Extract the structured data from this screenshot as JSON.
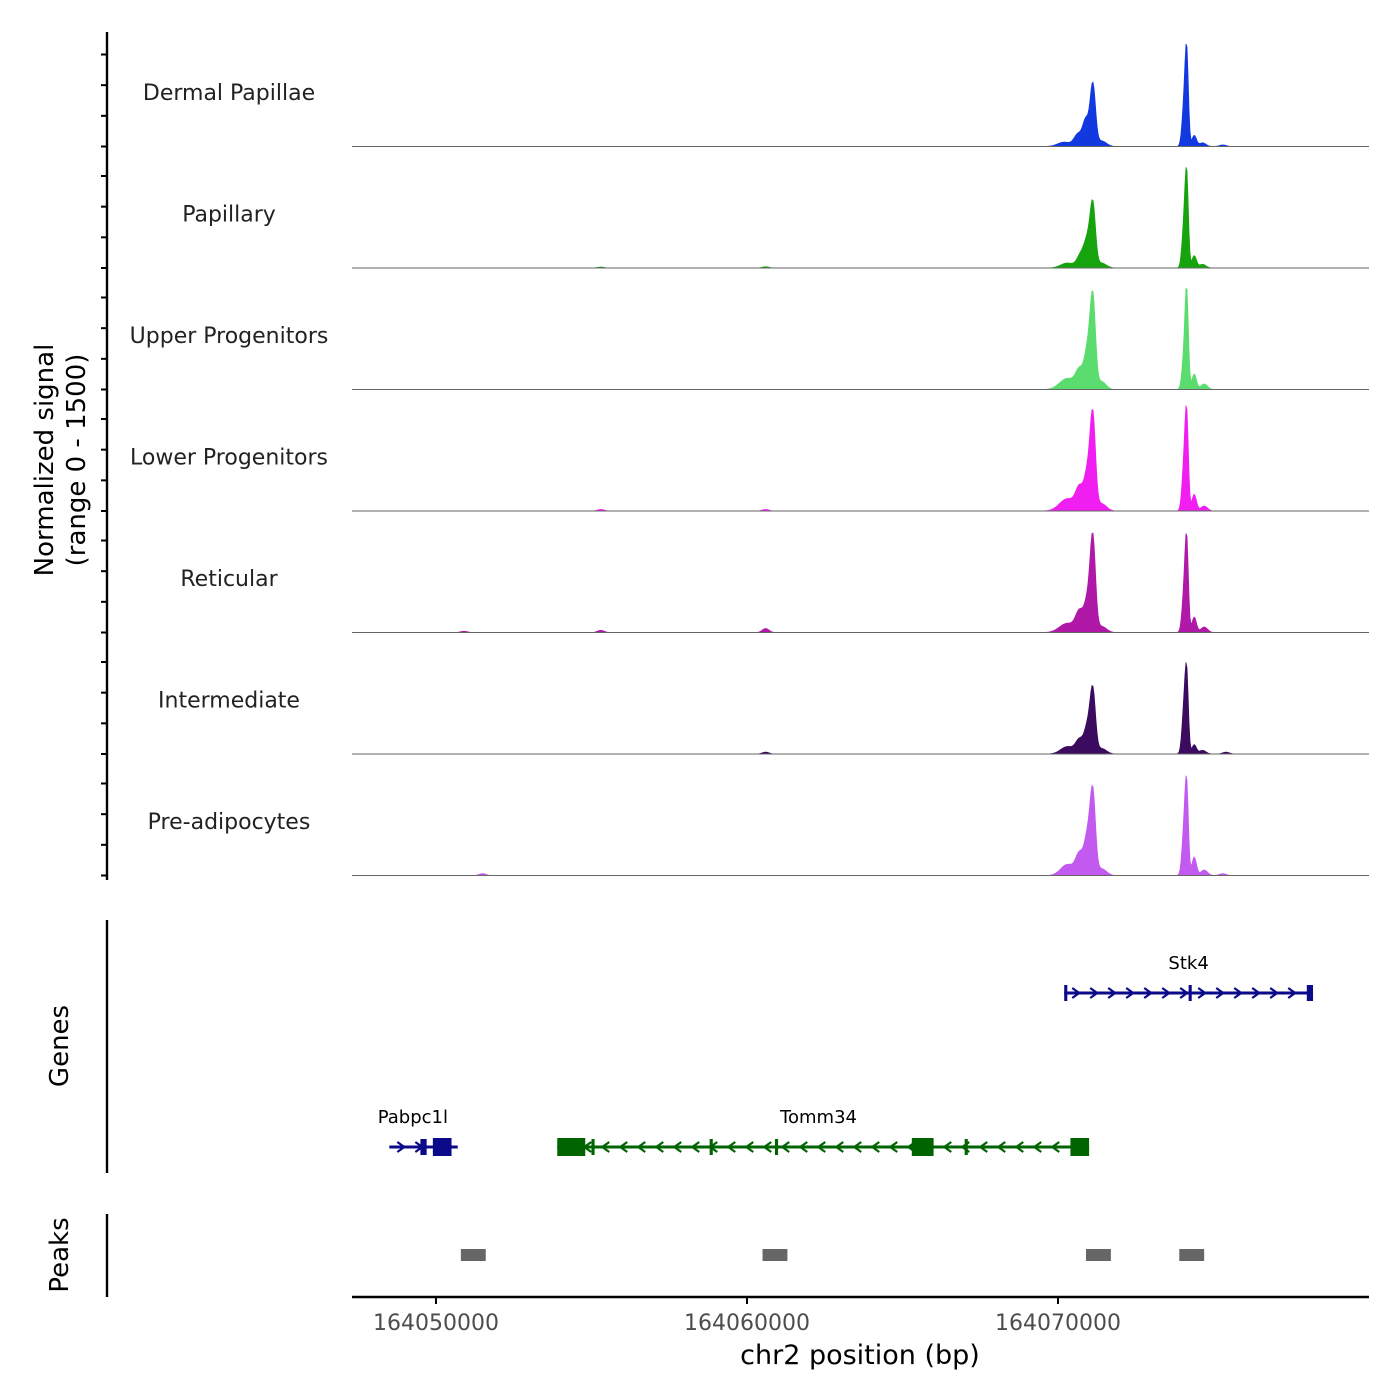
{
  "chart_data": {
    "type": "area",
    "title": "",
    "y_title": "Normalized signal",
    "y_subtitle": "(range 0 - 1500)",
    "xlabel": "chr2 position (bp)",
    "xlim": [
      164047300,
      164080000
    ],
    "ylim": [
      0,
      1500
    ],
    "x_ticks": [
      164050000,
      164060000,
      164070000
    ],
    "x_tick_labels": [
      "164050000",
      "164060000",
      "164070000"
    ],
    "tracks": [
      {
        "name": "Dermal Papillae",
        "color": "#1238e0",
        "peaks": [
          {
            "pos": 164070200,
            "w": 300,
            "h": 70
          },
          {
            "pos": 164070650,
            "w": 180,
            "h": 200
          },
          {
            "pos": 164070900,
            "w": 140,
            "h": 420
          },
          {
            "pos": 164071120,
            "w": 120,
            "h": 1000
          },
          {
            "pos": 164071400,
            "w": 220,
            "h": 90
          },
          {
            "pos": 164074050,
            "w": 90,
            "h": 620
          },
          {
            "pos": 164074140,
            "w": 75,
            "h": 1450
          },
          {
            "pos": 164074380,
            "w": 100,
            "h": 180
          },
          {
            "pos": 164074650,
            "w": 150,
            "h": 60
          },
          {
            "pos": 164075300,
            "w": 150,
            "h": 25
          }
        ]
      },
      {
        "name": "Papillary",
        "color": "#17a30d",
        "peaks": [
          {
            "pos": 164070300,
            "w": 300,
            "h": 80
          },
          {
            "pos": 164070750,
            "w": 180,
            "h": 230
          },
          {
            "pos": 164070950,
            "w": 140,
            "h": 400
          },
          {
            "pos": 164071120,
            "w": 120,
            "h": 1000
          },
          {
            "pos": 164071400,
            "w": 220,
            "h": 80
          },
          {
            "pos": 164074050,
            "w": 90,
            "h": 650
          },
          {
            "pos": 164074140,
            "w": 75,
            "h": 1400
          },
          {
            "pos": 164074380,
            "w": 100,
            "h": 200
          },
          {
            "pos": 164074650,
            "w": 150,
            "h": 60
          },
          {
            "pos": 164060600,
            "w": 150,
            "h": 20
          },
          {
            "pos": 164055300,
            "w": 150,
            "h": 15
          }
        ]
      },
      {
        "name": "Upper Progenitors",
        "color": "#5bdc6e",
        "peaks": [
          {
            "pos": 164070300,
            "w": 350,
            "h": 180
          },
          {
            "pos": 164070700,
            "w": 180,
            "h": 300
          },
          {
            "pos": 164070950,
            "w": 140,
            "h": 600
          },
          {
            "pos": 164071120,
            "w": 120,
            "h": 1450
          },
          {
            "pos": 164071400,
            "w": 200,
            "h": 130
          },
          {
            "pos": 164074050,
            "w": 90,
            "h": 500
          },
          {
            "pos": 164074140,
            "w": 75,
            "h": 1500
          },
          {
            "pos": 164074380,
            "w": 100,
            "h": 250
          },
          {
            "pos": 164074700,
            "w": 150,
            "h": 90
          }
        ]
      },
      {
        "name": "Lower Progenitors",
        "color": "#f01ef0",
        "peaks": [
          {
            "pos": 164070300,
            "w": 350,
            "h": 200
          },
          {
            "pos": 164070700,
            "w": 180,
            "h": 360
          },
          {
            "pos": 164070950,
            "w": 140,
            "h": 580
          },
          {
            "pos": 164071120,
            "w": 120,
            "h": 1500
          },
          {
            "pos": 164071400,
            "w": 220,
            "h": 120
          },
          {
            "pos": 164074050,
            "w": 90,
            "h": 700
          },
          {
            "pos": 164074140,
            "w": 75,
            "h": 1450
          },
          {
            "pos": 164074380,
            "w": 100,
            "h": 270
          },
          {
            "pos": 164074700,
            "w": 150,
            "h": 80
          },
          {
            "pos": 164055300,
            "w": 150,
            "h": 25
          },
          {
            "pos": 164060600,
            "w": 150,
            "h": 25
          }
        ]
      },
      {
        "name": "Reticular",
        "color": "#b018a8",
        "peaks": [
          {
            "pos": 164070300,
            "w": 350,
            "h": 150
          },
          {
            "pos": 164070700,
            "w": 180,
            "h": 330
          },
          {
            "pos": 164070950,
            "w": 140,
            "h": 480
          },
          {
            "pos": 164071120,
            "w": 120,
            "h": 1500
          },
          {
            "pos": 164071400,
            "w": 220,
            "h": 100
          },
          {
            "pos": 164074050,
            "w": 90,
            "h": 600
          },
          {
            "pos": 164074140,
            "w": 75,
            "h": 1400
          },
          {
            "pos": 164074380,
            "w": 100,
            "h": 250
          },
          {
            "pos": 164074700,
            "w": 150,
            "h": 90
          },
          {
            "pos": 164050900,
            "w": 150,
            "h": 20
          },
          {
            "pos": 164055300,
            "w": 150,
            "h": 35
          },
          {
            "pos": 164060600,
            "w": 150,
            "h": 65
          }
        ]
      },
      {
        "name": "Intermediate",
        "color": "#3a0b5e",
        "peaks": [
          {
            "pos": 164070300,
            "w": 300,
            "h": 120
          },
          {
            "pos": 164070700,
            "w": 180,
            "h": 230
          },
          {
            "pos": 164070950,
            "w": 140,
            "h": 420
          },
          {
            "pos": 164071120,
            "w": 120,
            "h": 1000
          },
          {
            "pos": 164071400,
            "w": 220,
            "h": 90
          },
          {
            "pos": 164074050,
            "w": 90,
            "h": 700
          },
          {
            "pos": 164074140,
            "w": 75,
            "h": 1200
          },
          {
            "pos": 164074380,
            "w": 100,
            "h": 150
          },
          {
            "pos": 164074650,
            "w": 150,
            "h": 60
          },
          {
            "pos": 164075400,
            "w": 150,
            "h": 30
          },
          {
            "pos": 164060600,
            "w": 150,
            "h": 30
          }
        ]
      },
      {
        "name": "Pre-adipocytes",
        "color": "#c35af0",
        "peaks": [
          {
            "pos": 164070300,
            "w": 300,
            "h": 180
          },
          {
            "pos": 164070700,
            "w": 180,
            "h": 350
          },
          {
            "pos": 164070950,
            "w": 140,
            "h": 600
          },
          {
            "pos": 164071120,
            "w": 120,
            "h": 1300
          },
          {
            "pos": 164071400,
            "w": 220,
            "h": 110
          },
          {
            "pos": 164074050,
            "w": 90,
            "h": 700
          },
          {
            "pos": 164074140,
            "w": 75,
            "h": 1350
          },
          {
            "pos": 164074380,
            "w": 100,
            "h": 300
          },
          {
            "pos": 164074700,
            "w": 150,
            "h": 90
          },
          {
            "pos": 164075300,
            "w": 150,
            "h": 30
          },
          {
            "pos": 164051500,
            "w": 150,
            "h": 30
          }
        ]
      }
    ],
    "genes_label": "Genes",
    "genes": [
      {
        "name": "Stk4",
        "strand": "+",
        "start": 164070200,
        "end": 164078200,
        "color": "#0a0a8a",
        "exons": [
          [
            164070200,
            164070300
          ],
          [
            164074200,
            164074300
          ],
          [
            164078000,
            164078200
          ]
        ]
      },
      {
        "name": "Pabpc1l",
        "strand": "+",
        "start": 164048500,
        "end": 164050700,
        "color": "#0a0a8a",
        "exons": [
          [
            164049500,
            164049700
          ],
          [
            164049900,
            164050500
          ]
        ]
      },
      {
        "name": "Tomm34",
        "strand": "-",
        "start": 164053900,
        "end": 164071000,
        "color": "#006400",
        "exons": [
          [
            164053900,
            164054800
          ],
          [
            164055000,
            164055100
          ],
          [
            164058800,
            164058900
          ],
          [
            164060900,
            164061000
          ],
          [
            164065300,
            164066000
          ],
          [
            164067000,
            164067100
          ],
          [
            164070400,
            164071000
          ]
        ]
      }
    ],
    "peaks_label": "Peaks",
    "peaks_color": "#666666",
    "peak_regions": [
      [
        164050800,
        164051600
      ],
      [
        164060500,
        164061300
      ],
      [
        164070900,
        164071700
      ],
      [
        164073900,
        164074700
      ]
    ]
  }
}
